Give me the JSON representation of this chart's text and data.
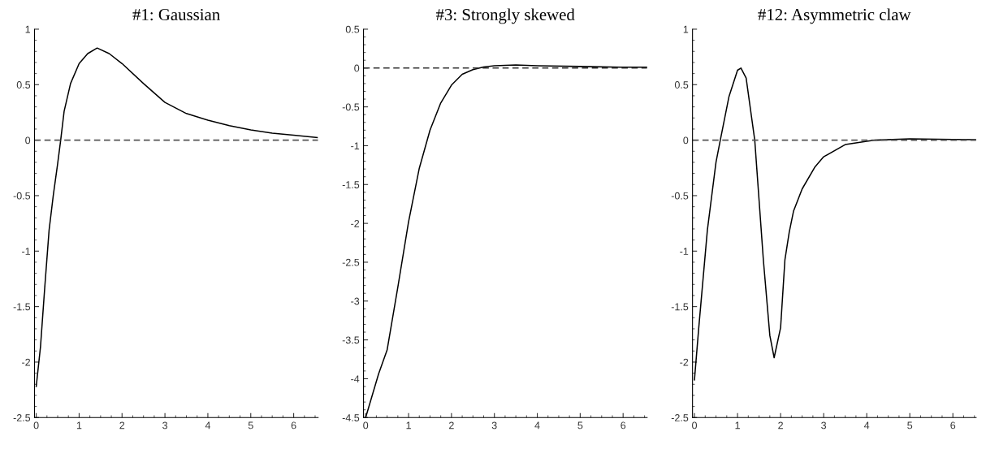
{
  "chart_data": [
    {
      "type": "line",
      "title": "#1: Gaussian",
      "xlim": [
        -0.04,
        6.57
      ],
      "xticks": [
        0,
        1,
        2,
        3,
        4,
        5,
        6
      ],
      "ylim": [
        -2.5,
        1
      ],
      "yticks": [
        -2.5,
        -2,
        -1.5,
        -1,
        -0.5,
        0,
        0.5,
        1
      ],
      "grid": false,
      "line_style": "solid",
      "series": [
        {
          "color": "#000000",
          "x": [
            0,
            0.1,
            0.2,
            0.3,
            0.4,
            0.5,
            0.57,
            0.65,
            0.8,
            1.0,
            1.2,
            1.42,
            1.7,
            2.0,
            2.5,
            3.0,
            3.5,
            4.0,
            4.5,
            5.0,
            5.5,
            6.0,
            6.55
          ],
          "values": [
            -2.22,
            -1.86,
            -1.32,
            -0.81,
            -0.49,
            -0.21,
            0,
            0.26,
            0.51,
            0.69,
            0.78,
            0.83,
            0.78,
            0.69,
            0.51,
            0.34,
            0.24,
            0.18,
            0.13,
            0.093,
            0.063,
            0.044,
            0.024
          ]
        }
      ],
      "ref_lines": [
        {
          "axis": "y",
          "value": 0,
          "color": "#555555",
          "line_style": "dashed"
        }
      ]
    },
    {
      "type": "line",
      "title": "#3: Strongly skewed",
      "xlim": [
        -0.05,
        6.56
      ],
      "xticks": [
        0,
        1,
        2,
        3,
        4,
        5,
        6
      ],
      "ylim": [
        -4.5,
        0.5
      ],
      "yticks": [
        -4.5,
        -4,
        -3.5,
        -3,
        -2.5,
        -2,
        -1.5,
        -1,
        -0.5,
        0,
        0.5
      ],
      "grid": false,
      "line_style": "solid",
      "series": [
        {
          "color": "#000000",
          "x": [
            0,
            0.3,
            0.5,
            0.75,
            1.0,
            1.25,
            1.5,
            1.75,
            2.0,
            2.25,
            2.5,
            2.75,
            3.0,
            3.5,
            4.0,
            5.0,
            6.0,
            6.55
          ],
          "values": [
            -4.5,
            -3.94,
            -3.63,
            -2.82,
            -1.98,
            -1.29,
            -0.8,
            -0.45,
            -0.22,
            -0.08,
            -0.02,
            0.014,
            0.03,
            0.04,
            0.03,
            0.02,
            0.01,
            0.01
          ]
        }
      ],
      "ref_lines": [
        {
          "axis": "y",
          "value": 0,
          "color": "#333333",
          "line_style": "dashed"
        }
      ]
    },
    {
      "type": "line",
      "title": "#12: Asymmetric claw",
      "xlim": [
        -0.045,
        6.54
      ],
      "xticks": [
        0,
        1,
        2,
        3,
        4,
        5,
        6
      ],
      "ylim": [
        -2.5,
        1
      ],
      "yticks": [
        -2.5,
        -2,
        -1.5,
        -1,
        -0.5,
        0,
        0.5,
        1
      ],
      "grid": false,
      "line_style": "solid",
      "series": [
        {
          "color": "#000000",
          "x": [
            0,
            0.1,
            0.3,
            0.5,
            0.6,
            0.8,
            1.0,
            1.08,
            1.2,
            1.4,
            1.6,
            1.75,
            1.85,
            2.0,
            2.1,
            2.2,
            2.3,
            2.5,
            2.8,
            3.0,
            3.5,
            4.0,
            4.2,
            5.0,
            6.0,
            6.54
          ],
          "values": [
            -2.16,
            -1.69,
            -0.81,
            -0.2,
            0,
            0.39,
            0.63,
            0.65,
            0.56,
            0,
            -1.08,
            -1.76,
            -1.96,
            -1.69,
            -1.08,
            -0.83,
            -0.64,
            -0.44,
            -0.24,
            -0.15,
            -0.04,
            -0.01,
            0,
            0.012,
            0.007,
            0.005
          ]
        }
      ],
      "ref_lines": [
        {
          "axis": "y",
          "value": 0,
          "color": "#555555",
          "line_style": "dashed"
        }
      ]
    }
  ]
}
